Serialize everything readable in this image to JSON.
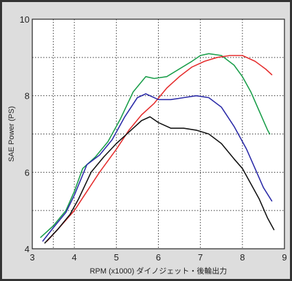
{
  "chart_data": {
    "type": "line",
    "xlabel": "RPM (x1000) ダイノジェット・後輪出力",
    "ylabel": "SAE Power (PS)",
    "xlim": [
      3,
      9
    ],
    "ylim": [
      4,
      10
    ],
    "x_ticks": [
      3,
      4,
      5,
      6,
      7,
      8,
      9
    ],
    "y_ticks": [
      4,
      6,
      8,
      10
    ],
    "grid": "dotted",
    "grid_x": [
      3.5,
      4,
      5,
      6,
      7,
      8
    ],
    "grid_y": [
      5,
      6,
      7,
      8,
      9
    ],
    "series": [
      {
        "color": "#1a9e4a",
        "points": [
          [
            3.2,
            4.3
          ],
          [
            3.5,
            4.6
          ],
          [
            3.8,
            5.0
          ],
          [
            4.0,
            5.5
          ],
          [
            4.2,
            6.1
          ],
          [
            4.5,
            6.4
          ],
          [
            4.8,
            6.8
          ],
          [
            5.1,
            7.4
          ],
          [
            5.4,
            8.1
          ],
          [
            5.7,
            8.5
          ],
          [
            5.9,
            8.45
          ],
          [
            6.2,
            8.5
          ],
          [
            6.5,
            8.7
          ],
          [
            6.8,
            8.9
          ],
          [
            7.0,
            9.05
          ],
          [
            7.2,
            9.1
          ],
          [
            7.5,
            9.05
          ],
          [
            7.8,
            8.8
          ],
          [
            8.0,
            8.5
          ],
          [
            8.2,
            8.1
          ],
          [
            8.4,
            7.6
          ],
          [
            8.6,
            7.1
          ],
          [
            8.65,
            7.0
          ]
        ]
      },
      {
        "color": "#e52d2d",
        "points": [
          [
            3.35,
            4.2
          ],
          [
            3.6,
            4.5
          ],
          [
            4.0,
            5.0
          ],
          [
            4.3,
            5.5
          ],
          [
            4.6,
            6.0
          ],
          [
            5.0,
            6.6
          ],
          [
            5.3,
            7.1
          ],
          [
            5.6,
            7.5
          ],
          [
            5.9,
            7.8
          ],
          [
            6.2,
            8.2
          ],
          [
            6.5,
            8.5
          ],
          [
            6.8,
            8.75
          ],
          [
            7.1,
            8.9
          ],
          [
            7.4,
            9.0
          ],
          [
            7.7,
            9.05
          ],
          [
            8.0,
            9.05
          ],
          [
            8.3,
            8.9
          ],
          [
            8.55,
            8.7
          ],
          [
            8.7,
            8.55
          ]
        ]
      },
      {
        "color": "#2b2ba8",
        "points": [
          [
            3.25,
            4.2
          ],
          [
            3.5,
            4.55
          ],
          [
            3.8,
            4.95
          ],
          [
            4.0,
            5.4
          ],
          [
            4.3,
            6.2
          ],
          [
            4.6,
            6.45
          ],
          [
            4.9,
            6.85
          ],
          [
            5.2,
            7.45
          ],
          [
            5.5,
            7.95
          ],
          [
            5.7,
            8.05
          ],
          [
            6.0,
            7.9
          ],
          [
            6.3,
            7.9
          ],
          [
            6.6,
            7.95
          ],
          [
            6.9,
            8.0
          ],
          [
            7.2,
            7.95
          ],
          [
            7.5,
            7.7
          ],
          [
            7.8,
            7.2
          ],
          [
            8.1,
            6.6
          ],
          [
            8.3,
            6.1
          ],
          [
            8.5,
            5.6
          ],
          [
            8.7,
            5.25
          ]
        ]
      },
      {
        "color": "#111111",
        "points": [
          [
            3.3,
            4.15
          ],
          [
            3.6,
            4.5
          ],
          [
            3.9,
            4.9
          ],
          [
            4.1,
            5.3
          ],
          [
            4.4,
            6.0
          ],
          [
            4.7,
            6.4
          ],
          [
            5.0,
            6.75
          ],
          [
            5.3,
            7.05
          ],
          [
            5.6,
            7.35
          ],
          [
            5.8,
            7.45
          ],
          [
            6.0,
            7.3
          ],
          [
            6.3,
            7.15
          ],
          [
            6.6,
            7.15
          ],
          [
            6.9,
            7.1
          ],
          [
            7.2,
            7.0
          ],
          [
            7.5,
            6.75
          ],
          [
            7.8,
            6.35
          ],
          [
            8.0,
            6.1
          ],
          [
            8.2,
            5.7
          ],
          [
            8.4,
            5.3
          ],
          [
            8.6,
            4.8
          ],
          [
            8.75,
            4.5
          ]
        ]
      }
    ]
  }
}
